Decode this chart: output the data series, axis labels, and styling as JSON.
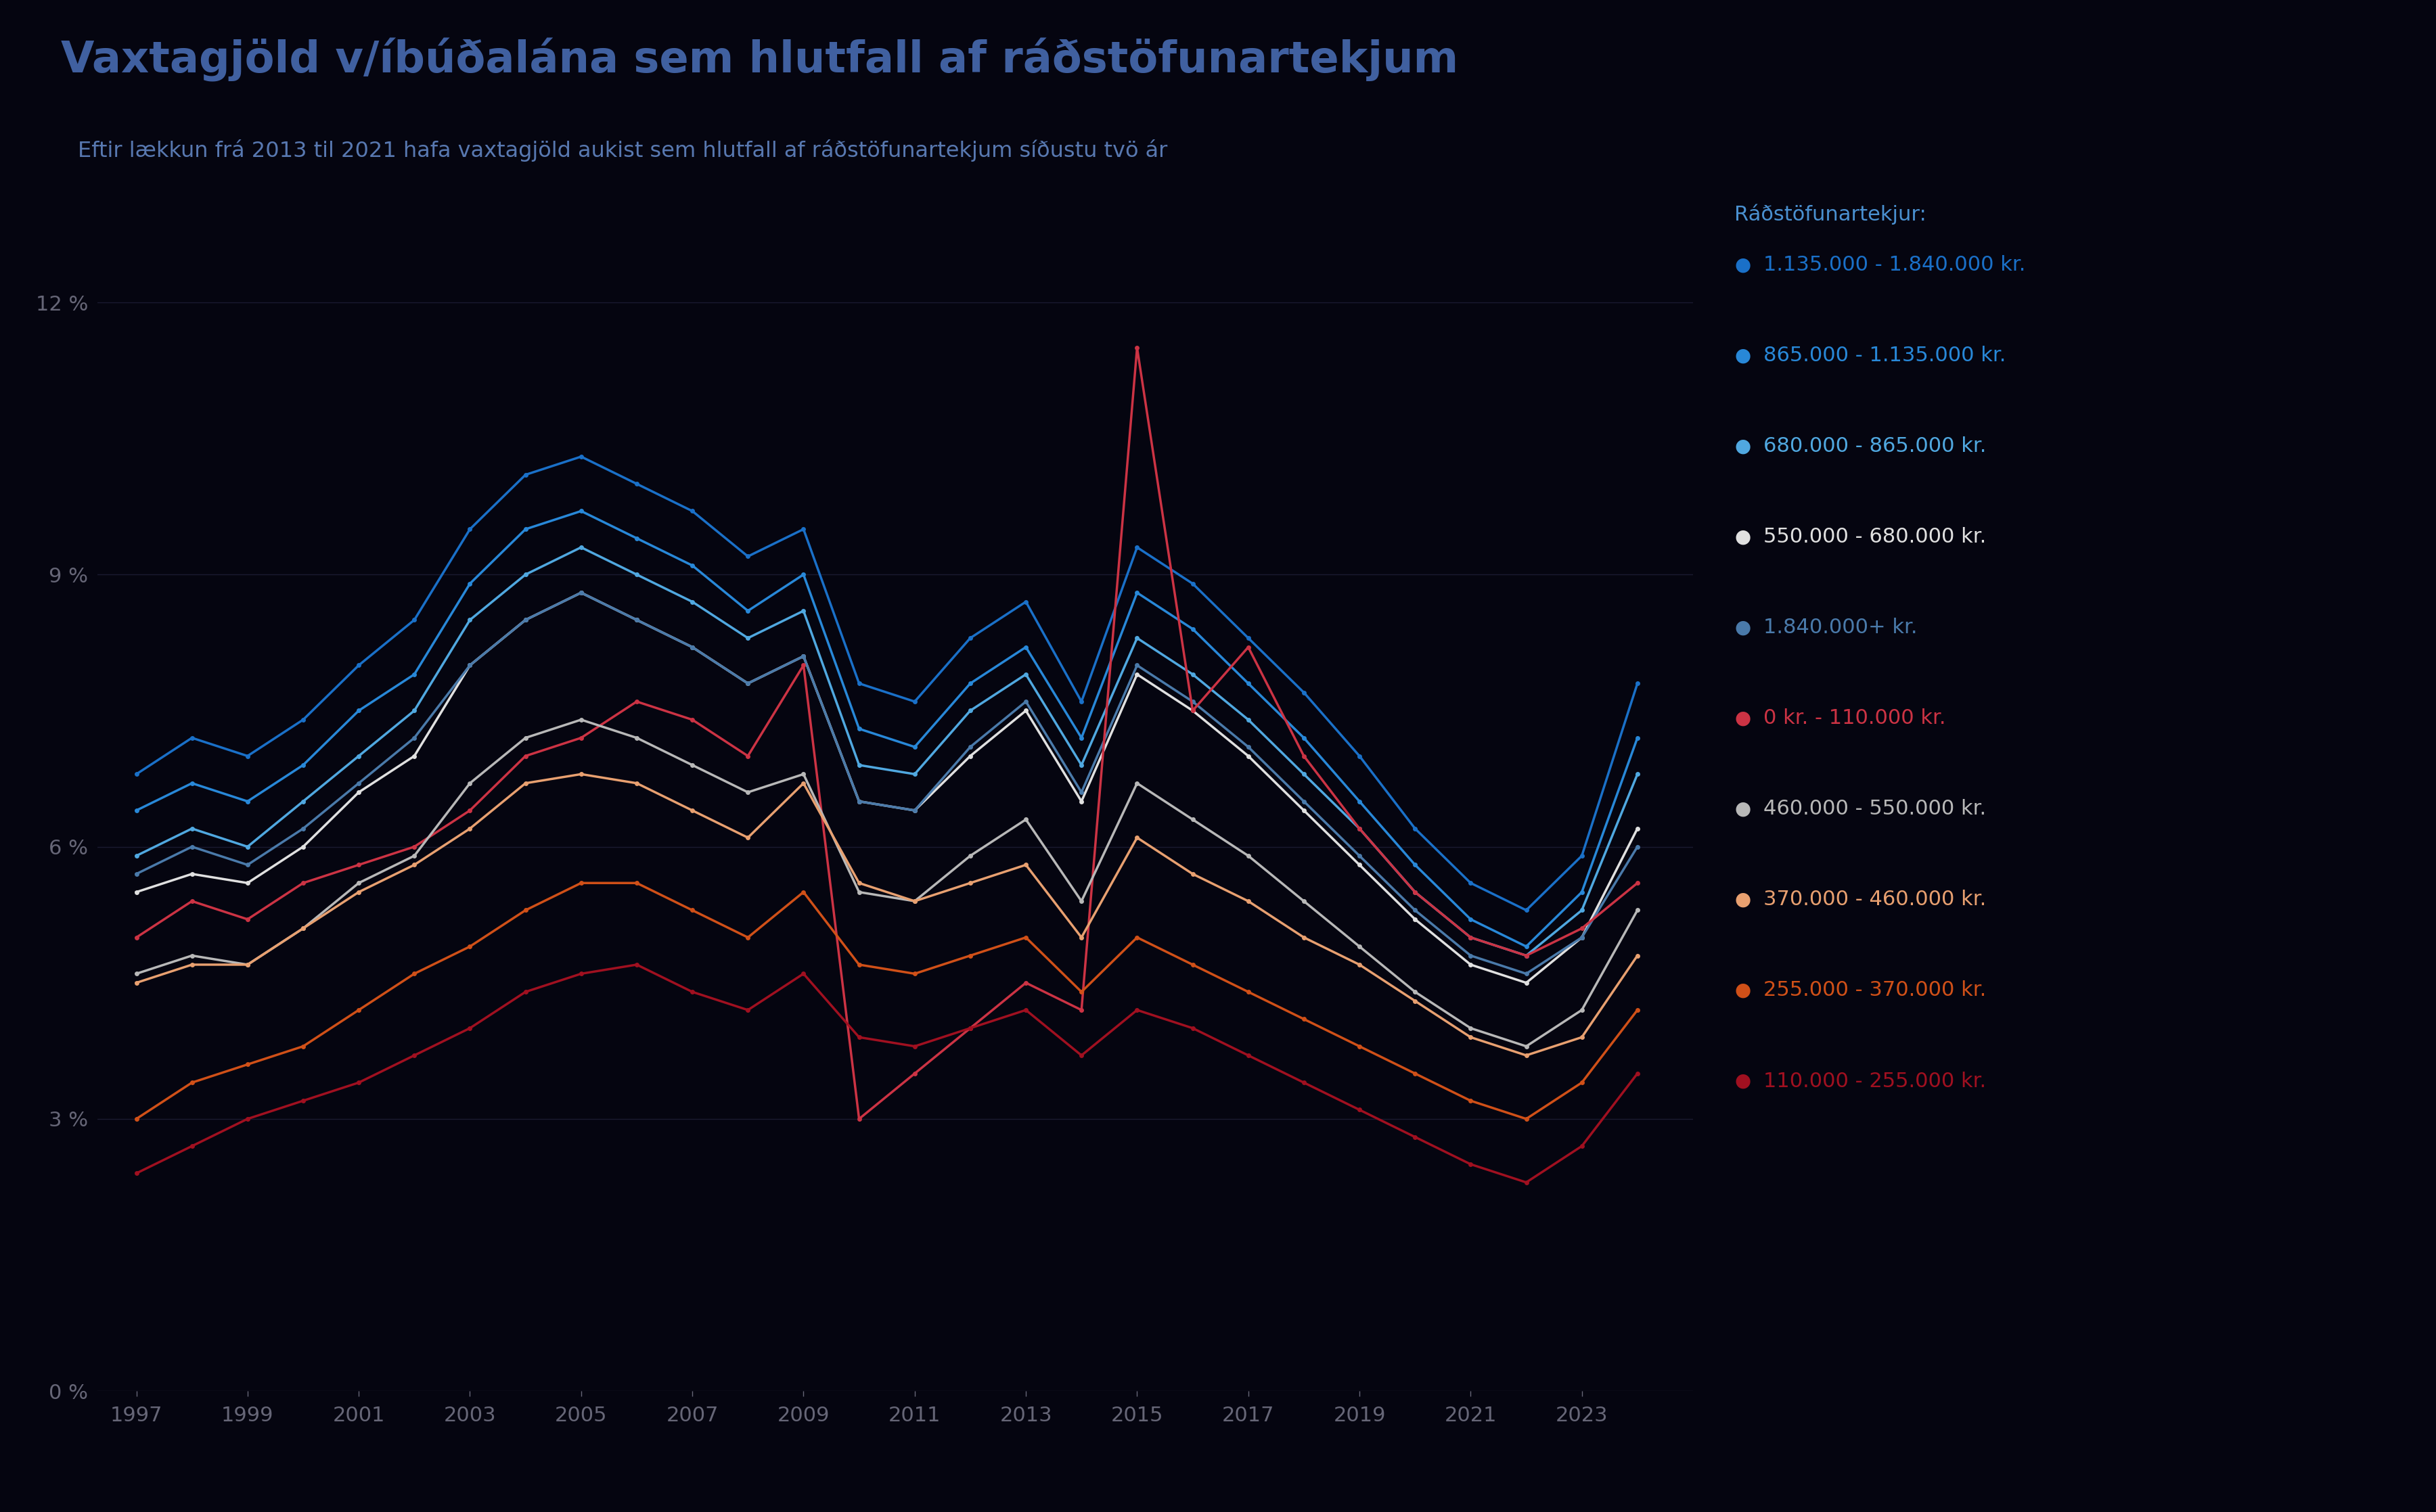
{
  "title": "Vaxtagjöld v/íbúðalána sem hlutfall af ráðstöfunartekjum",
  "subtitle": "Eftir lækkun frá 2013 til 2021 hafa vaxtagjöld aukist sem hlutfall af ráðstöfunartekjum síðustu tvö ár",
  "legend_title": "Ráðstöfunartekjur:",
  "bg_color": "#050510",
  "title_color": "#4060a0",
  "subtitle_color": "#5878b0",
  "legend_title_color": "#4a90d0",
  "years": [
    1997,
    1998,
    1999,
    2000,
    2001,
    2002,
    2003,
    2004,
    2005,
    2006,
    2007,
    2008,
    2009,
    2010,
    2011,
    2012,
    2013,
    2014,
    2015,
    2016,
    2017,
    2018,
    2019,
    2020,
    2021,
    2022,
    2023,
    2024
  ],
  "series": [
    {
      "label": "1.135.000 - 1.840.000 kr.",
      "color": "#1a70c8",
      "values": [
        6.8,
        7.2,
        7.0,
        7.4,
        8.0,
        8.5,
        9.5,
        10.1,
        10.3,
        10.0,
        9.7,
        9.2,
        9.5,
        7.8,
        7.6,
        8.3,
        8.7,
        7.6,
        9.3,
        8.9,
        8.3,
        7.7,
        7.0,
        6.2,
        5.6,
        5.3,
        5.9,
        7.8
      ]
    },
    {
      "label": "865.000 - 1.135.000 kr.",
      "color": "#2888d8",
      "values": [
        6.4,
        6.7,
        6.5,
        6.9,
        7.5,
        7.9,
        8.9,
        9.5,
        9.7,
        9.4,
        9.1,
        8.6,
        9.0,
        7.3,
        7.1,
        7.8,
        8.2,
        7.2,
        8.8,
        8.4,
        7.8,
        7.2,
        6.5,
        5.8,
        5.2,
        4.9,
        5.5,
        7.2
      ]
    },
    {
      "label": "680.000 - 865.000 kr.",
      "color": "#50a8e0",
      "values": [
        5.9,
        6.2,
        6.0,
        6.5,
        7.0,
        7.5,
        8.5,
        9.0,
        9.3,
        9.0,
        8.7,
        8.3,
        8.6,
        6.9,
        6.8,
        7.5,
        7.9,
        6.9,
        8.3,
        7.9,
        7.4,
        6.8,
        6.2,
        5.5,
        5.0,
        4.8,
        5.3,
        6.8
      ]
    },
    {
      "label": "550.000 - 680.000 kr.",
      "color": "#e0e0e0",
      "values": [
        5.5,
        5.7,
        5.6,
        6.0,
        6.6,
        7.0,
        8.0,
        8.5,
        8.8,
        8.5,
        8.2,
        7.8,
        8.1,
        6.5,
        6.4,
        7.0,
        7.5,
        6.5,
        7.9,
        7.5,
        7.0,
        6.4,
        5.8,
        5.2,
        4.7,
        4.5,
        5.0,
        6.2
      ]
    },
    {
      "label": "1.840.000+ kr.",
      "color": "#4a7aaa",
      "values": [
        5.7,
        6.0,
        5.8,
        6.2,
        6.7,
        7.2,
        8.0,
        8.5,
        8.8,
        8.5,
        8.2,
        7.8,
        8.1,
        6.5,
        6.4,
        7.1,
        7.6,
        6.6,
        8.0,
        7.6,
        7.1,
        6.5,
        5.9,
        5.3,
        4.8,
        4.6,
        5.0,
        6.0
      ]
    },
    {
      "label": "0 kr. - 110.000 kr.",
      "color": "#cc3344",
      "values": [
        5.0,
        5.4,
        5.2,
        5.6,
        5.8,
        6.0,
        6.4,
        7.0,
        7.2,
        7.6,
        7.4,
        7.0,
        8.0,
        3.0,
        3.5,
        4.0,
        4.5,
        4.2,
        11.5,
        7.5,
        8.2,
        7.0,
        6.2,
        5.5,
        5.0,
        4.8,
        5.1,
        5.6
      ]
    },
    {
      "label": "460.000 - 550.000 kr.",
      "color": "#b8b8b8",
      "values": [
        4.6,
        4.8,
        4.7,
        5.1,
        5.6,
        5.9,
        6.7,
        7.2,
        7.4,
        7.2,
        6.9,
        6.6,
        6.8,
        5.5,
        5.4,
        5.9,
        6.3,
        5.4,
        6.7,
        6.3,
        5.9,
        5.4,
        4.9,
        4.4,
        4.0,
        3.8,
        4.2,
        5.3
      ]
    },
    {
      "label": "370.000 - 460.000 kr.",
      "color": "#e8a070",
      "values": [
        4.5,
        4.7,
        4.7,
        5.1,
        5.5,
        5.8,
        6.2,
        6.7,
        6.8,
        6.7,
        6.4,
        6.1,
        6.7,
        5.6,
        5.4,
        5.6,
        5.8,
        5.0,
        6.1,
        5.7,
        5.4,
        5.0,
        4.7,
        4.3,
        3.9,
        3.7,
        3.9,
        4.8
      ]
    },
    {
      "label": "255.000 - 370.000 kr.",
      "color": "#d05018",
      "values": [
        3.0,
        3.4,
        3.6,
        3.8,
        4.2,
        4.6,
        4.9,
        5.3,
        5.6,
        5.6,
        5.3,
        5.0,
        5.5,
        4.7,
        4.6,
        4.8,
        5.0,
        4.4,
        5.0,
        4.7,
        4.4,
        4.1,
        3.8,
        3.5,
        3.2,
        3.0,
        3.4,
        4.2
      ]
    },
    {
      "label": "110.000 - 255.000 kr.",
      "color": "#a01020",
      "values": [
        2.4,
        2.7,
        3.0,
        3.2,
        3.4,
        3.7,
        4.0,
        4.4,
        4.6,
        4.7,
        4.4,
        4.2,
        4.6,
        3.9,
        3.8,
        4.0,
        4.2,
        3.7,
        4.2,
        4.0,
        3.7,
        3.4,
        3.1,
        2.8,
        2.5,
        2.3,
        2.7,
        3.5
      ]
    }
  ],
  "ylim": [
    0,
    13.0
  ],
  "ytick_vals": [
    0,
    3,
    6,
    9,
    12
  ],
  "ytick_labels": [
    "0 %",
    "3 %",
    "6 %",
    "9 %",
    "12 %"
  ],
  "xticks": [
    1997,
    1999,
    2001,
    2003,
    2005,
    2007,
    2009,
    2011,
    2013,
    2015,
    2017,
    2019,
    2021,
    2023
  ],
  "grid_color": "#1a1a30",
  "tick_color": "#666677"
}
